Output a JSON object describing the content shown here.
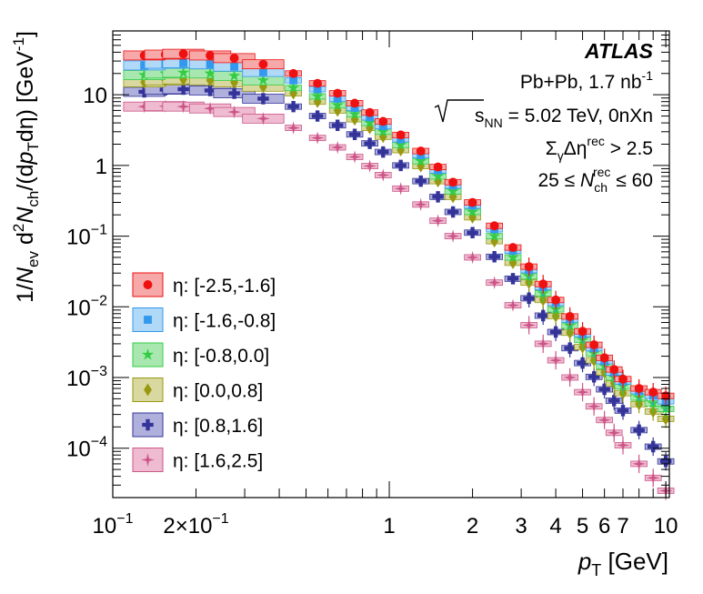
{
  "chart_data": {
    "type": "scatter",
    "title": "",
    "xlabel": {
      "var": "p",
      "sub": "T",
      "unit": "[GeV]"
    },
    "ylabel": {
      "pre": "1/",
      "n1": "N",
      "n1sub": "ev",
      "mid": " d",
      "mid_sup": "2",
      "n2": "N",
      "n2sub": "ch",
      "post1": "/(d",
      "p": "p",
      "psub": "T",
      "post2": "dη) [GeV",
      "post2sup": "-1",
      "post3": "]"
    },
    "x_scale": "log",
    "y_scale": "log",
    "xlim": [
      0.1,
      10.3
    ],
    "ylim": [
      2e-05,
      80
    ],
    "x_ticks": [
      {
        "v": 0.1,
        "base": "10",
        "exp": "−1"
      },
      {
        "v": 0.2,
        "base": "2×10",
        "exp": "−1"
      },
      {
        "v": 1,
        "base": "1"
      },
      {
        "v": 2,
        "base": "2"
      },
      {
        "v": 3,
        "base": "3"
      },
      {
        "v": 4,
        "base": "4"
      },
      {
        "v": 5,
        "base": "5"
      },
      {
        "v": 6,
        "base": "6"
      },
      {
        "v": 7,
        "base": "7"
      },
      {
        "v": 10,
        "base": "10"
      }
    ],
    "y_ticks": [
      {
        "v": 10,
        "base": "10"
      },
      {
        "v": 1,
        "base": "1"
      },
      {
        "v": 0.1,
        "base": "10",
        "exp": "−1"
      },
      {
        "v": 0.01,
        "base": "10",
        "exp": "−2"
      },
      {
        "v": 0.001,
        "base": "10",
        "exp": "−3"
      },
      {
        "v": 0.0001,
        "base": "10",
        "exp": "−4"
      }
    ],
    "annotations": {
      "experiment": "ATLAS",
      "line1": {
        "text": "Pb+Pb, 1.7 nb",
        "sup": "-1"
      },
      "line2": {
        "root_label": "s",
        "root_sub": "NN",
        "text": " = 5.02 TeV, 0nXn"
      },
      "line3": {
        "sigma": "Σ",
        "sigma_sub": "γ",
        "text": "Δη",
        "sup": "rec",
        "tail": " > 2.5"
      },
      "line4": {
        "pre": "25 ≤ ",
        "var": "N",
        "sub": "ch",
        "sup": "rec",
        "tail": " ≤ 60"
      }
    },
    "legend_position": "bottom-left",
    "series": [
      {
        "name": "η: [-2.5,-1.6]",
        "marker": "circle",
        "color": "#ee1111",
        "band_fill": "#f7a8a8",
        "values": [
          {
            "x": 0.13,
            "y": 36
          },
          {
            "x": 0.155,
            "y": 37
          },
          {
            "x": 0.18,
            "y": 38
          },
          {
            "x": 0.225,
            "y": 36
          },
          {
            "x": 0.275,
            "y": 33
          },
          {
            "x": 0.35,
            "y": 27
          },
          {
            "x": 0.45,
            "y": 20
          },
          {
            "x": 0.55,
            "y": 14.5
          },
          {
            "x": 0.65,
            "y": 10.5
          },
          {
            "x": 0.75,
            "y": 7.6
          },
          {
            "x": 0.85,
            "y": 5.6
          },
          {
            "x": 0.95,
            "y": 4.2
          },
          {
            "x": 1.1,
            "y": 2.7
          },
          {
            "x": 1.3,
            "y": 1.6
          },
          {
            "x": 1.5,
            "y": 0.95
          },
          {
            "x": 1.7,
            "y": 0.58
          },
          {
            "x": 2.0,
            "y": 0.3
          },
          {
            "x": 2.4,
            "y": 0.14
          },
          {
            "x": 2.8,
            "y": 0.069
          },
          {
            "x": 3.2,
            "y": 0.037
          },
          {
            "x": 3.6,
            "y": 0.021
          },
          {
            "x": 4.0,
            "y": 0.0125
          },
          {
            "x": 4.5,
            "y": 0.0073
          },
          {
            "x": 5.0,
            "y": 0.0045
          },
          {
            "x": 5.5,
            "y": 0.0029
          },
          {
            "x": 6.0,
            "y": 0.0019
          },
          {
            "x": 6.5,
            "y": 0.0013
          },
          {
            "x": 7.0,
            "y": 0.00095
          },
          {
            "x": 8.0,
            "y": 0.0007
          },
          {
            "x": 9.0,
            "y": 0.00062
          },
          {
            "x": 10.0,
            "y": 0.00055
          }
        ]
      },
      {
        "name": "η: [-1.6,-0.8]",
        "marker": "square",
        "color": "#3399ee",
        "band_fill": "#b0d8f7",
        "values": [
          {
            "x": 0.13,
            "y": 26
          },
          {
            "x": 0.155,
            "y": 27.5
          },
          {
            "x": 0.18,
            "y": 28
          },
          {
            "x": 0.225,
            "y": 27
          },
          {
            "x": 0.275,
            "y": 25
          },
          {
            "x": 0.35,
            "y": 21
          },
          {
            "x": 0.45,
            "y": 16
          },
          {
            "x": 0.55,
            "y": 12
          },
          {
            "x": 0.65,
            "y": 8.8
          },
          {
            "x": 0.75,
            "y": 6.5
          },
          {
            "x": 0.85,
            "y": 4.8
          },
          {
            "x": 0.95,
            "y": 3.6
          },
          {
            "x": 1.1,
            "y": 2.35
          },
          {
            "x": 1.3,
            "y": 1.4
          },
          {
            "x": 1.5,
            "y": 0.85
          },
          {
            "x": 1.7,
            "y": 0.52
          },
          {
            "x": 2.0,
            "y": 0.27
          },
          {
            "x": 2.4,
            "y": 0.125
          },
          {
            "x": 2.8,
            "y": 0.062
          },
          {
            "x": 3.2,
            "y": 0.033
          },
          {
            "x": 3.6,
            "y": 0.019
          },
          {
            "x": 4.0,
            "y": 0.0113
          },
          {
            "x": 4.5,
            "y": 0.0066
          },
          {
            "x": 5.0,
            "y": 0.0041
          },
          {
            "x": 5.5,
            "y": 0.0026
          },
          {
            "x": 6.0,
            "y": 0.0017
          },
          {
            "x": 6.5,
            "y": 0.00118
          },
          {
            "x": 7.0,
            "y": 0.00088
          },
          {
            "x": 8.0,
            "y": 0.00064
          },
          {
            "x": 9.0,
            "y": 0.00055
          },
          {
            "x": 10.0,
            "y": 0.00046
          }
        ]
      },
      {
        "name": "η: [-0.8,0.0]",
        "marker": "star",
        "color": "#33cc44",
        "band_fill": "#a8e8b0",
        "values": [
          {
            "x": 0.13,
            "y": 19
          },
          {
            "x": 0.155,
            "y": 20
          },
          {
            "x": 0.18,
            "y": 20.5
          },
          {
            "x": 0.225,
            "y": 20
          },
          {
            "x": 0.275,
            "y": 18.5
          },
          {
            "x": 0.35,
            "y": 16
          },
          {
            "x": 0.45,
            "y": 12.5
          },
          {
            "x": 0.55,
            "y": 9.5
          },
          {
            "x": 0.65,
            "y": 7.1
          },
          {
            "x": 0.75,
            "y": 5.3
          },
          {
            "x": 0.85,
            "y": 4.0
          },
          {
            "x": 0.95,
            "y": 3.0
          },
          {
            "x": 1.1,
            "y": 1.95
          },
          {
            "x": 1.3,
            "y": 1.15
          },
          {
            "x": 1.5,
            "y": 0.7
          },
          {
            "x": 1.7,
            "y": 0.43
          },
          {
            "x": 2.0,
            "y": 0.22
          },
          {
            "x": 2.4,
            "y": 0.1
          },
          {
            "x": 2.8,
            "y": 0.05
          },
          {
            "x": 3.2,
            "y": 0.027
          },
          {
            "x": 3.6,
            "y": 0.0155
          },
          {
            "x": 4.0,
            "y": 0.0092
          },
          {
            "x": 4.5,
            "y": 0.0054
          },
          {
            "x": 5.0,
            "y": 0.0034
          },
          {
            "x": 5.5,
            "y": 0.0022
          },
          {
            "x": 6.0,
            "y": 0.00145
          },
          {
            "x": 6.5,
            "y": 0.001
          },
          {
            "x": 7.0,
            "y": 0.00075
          },
          {
            "x": 8.0,
            "y": 0.00052
          },
          {
            "x": 9.0,
            "y": 0.00043
          },
          {
            "x": 10.0,
            "y": 0.00036
          }
        ]
      },
      {
        "name": "η: [0.0,0.8]",
        "marker": "diamond",
        "color": "#999911",
        "band_fill": "#d8d8a0",
        "values": [
          {
            "x": 0.13,
            "y": 15
          },
          {
            "x": 0.155,
            "y": 16
          },
          {
            "x": 0.18,
            "y": 16.5
          },
          {
            "x": 0.225,
            "y": 16
          },
          {
            "x": 0.275,
            "y": 15
          },
          {
            "x": 0.35,
            "y": 13
          },
          {
            "x": 0.45,
            "y": 10.5
          },
          {
            "x": 0.55,
            "y": 8.0
          },
          {
            "x": 0.65,
            "y": 6.0
          },
          {
            "x": 0.75,
            "y": 4.5
          },
          {
            "x": 0.85,
            "y": 3.4
          },
          {
            "x": 0.95,
            "y": 2.55
          },
          {
            "x": 1.1,
            "y": 1.65
          },
          {
            "x": 1.3,
            "y": 0.98
          },
          {
            "x": 1.5,
            "y": 0.6
          },
          {
            "x": 1.7,
            "y": 0.36
          },
          {
            "x": 2.0,
            "y": 0.185
          },
          {
            "x": 2.4,
            "y": 0.085
          },
          {
            "x": 2.8,
            "y": 0.042
          },
          {
            "x": 3.2,
            "y": 0.022
          },
          {
            "x": 3.6,
            "y": 0.0125
          },
          {
            "x": 4.0,
            "y": 0.0074
          },
          {
            "x": 4.5,
            "y": 0.0043
          },
          {
            "x": 5.0,
            "y": 0.0027
          },
          {
            "x": 5.5,
            "y": 0.00175
          },
          {
            "x": 6.0,
            "y": 0.00118
          },
          {
            "x": 6.5,
            "y": 0.00082
          },
          {
            "x": 7.0,
            "y": 0.0006
          },
          {
            "x": 8.0,
            "y": 0.00042
          },
          {
            "x": 9.0,
            "y": 0.00033
          },
          {
            "x": 10.0,
            "y": 0.00026
          }
        ]
      },
      {
        "name": "η: [0.8,1.6]",
        "marker": "cross",
        "color": "#333399",
        "band_fill": "#b0b0dd",
        "values": [
          {
            "x": 0.13,
            "y": 11
          },
          {
            "x": 0.155,
            "y": 11.8
          },
          {
            "x": 0.18,
            "y": 12
          },
          {
            "x": 0.225,
            "y": 11.5
          },
          {
            "x": 0.275,
            "y": 10.5
          },
          {
            "x": 0.35,
            "y": 8.8
          },
          {
            "x": 0.45,
            "y": 6.8
          },
          {
            "x": 0.55,
            "y": 5.0
          },
          {
            "x": 0.65,
            "y": 3.7
          },
          {
            "x": 0.75,
            "y": 2.75
          },
          {
            "x": 0.85,
            "y": 2.05
          },
          {
            "x": 0.95,
            "y": 1.55
          },
          {
            "x": 1.1,
            "y": 1.0
          },
          {
            "x": 1.3,
            "y": 0.6
          },
          {
            "x": 1.5,
            "y": 0.36
          },
          {
            "x": 1.7,
            "y": 0.22
          },
          {
            "x": 2.0,
            "y": 0.112
          },
          {
            "x": 2.4,
            "y": 0.051
          },
          {
            "x": 2.8,
            "y": 0.025
          },
          {
            "x": 3.2,
            "y": 0.0132
          },
          {
            "x": 3.6,
            "y": 0.0075
          },
          {
            "x": 4.0,
            "y": 0.0044
          },
          {
            "x": 4.5,
            "y": 0.0026
          },
          {
            "x": 5.0,
            "y": 0.0016
          },
          {
            "x": 5.5,
            "y": 0.00102
          },
          {
            "x": 6.0,
            "y": 0.00068
          },
          {
            "x": 6.5,
            "y": 0.00047
          },
          {
            "x": 7.0,
            "y": 0.00034
          },
          {
            "x": 8.0,
            "y": 0.00018
          },
          {
            "x": 9.0,
            "y": 0.000105
          },
          {
            "x": 10.0,
            "y": 6.5e-05
          }
        ]
      },
      {
        "name": "η: [1.6,2.5]",
        "marker": "star4",
        "color": "#cc5588",
        "band_fill": "#eebbd0",
        "values": [
          {
            "x": 0.13,
            "y": 6.8
          },
          {
            "x": 0.155,
            "y": 6.9
          },
          {
            "x": 0.18,
            "y": 6.8
          },
          {
            "x": 0.225,
            "y": 6.4
          },
          {
            "x": 0.275,
            "y": 5.7
          },
          {
            "x": 0.35,
            "y": 4.6
          },
          {
            "x": 0.45,
            "y": 3.4
          },
          {
            "x": 0.55,
            "y": 2.45
          },
          {
            "x": 0.65,
            "y": 1.8
          },
          {
            "x": 0.75,
            "y": 1.32
          },
          {
            "x": 0.85,
            "y": 0.98
          },
          {
            "x": 0.95,
            "y": 0.73
          },
          {
            "x": 1.1,
            "y": 0.47
          },
          {
            "x": 1.3,
            "y": 0.28
          },
          {
            "x": 1.5,
            "y": 0.165
          },
          {
            "x": 1.7,
            "y": 0.1
          },
          {
            "x": 2.0,
            "y": 0.05
          },
          {
            "x": 2.4,
            "y": 0.022
          },
          {
            "x": 2.8,
            "y": 0.0105
          },
          {
            "x": 3.2,
            "y": 0.0055
          },
          {
            "x": 3.6,
            "y": 0.003
          },
          {
            "x": 4.0,
            "y": 0.00175
          },
          {
            "x": 4.5,
            "y": 0.001
          },
          {
            "x": 5.0,
            "y": 0.00062
          },
          {
            "x": 5.5,
            "y": 0.00039
          },
          {
            "x": 6.0,
            "y": 0.00025
          },
          {
            "x": 6.5,
            "y": 0.000165
          },
          {
            "x": 7.0,
            "y": 0.00011
          },
          {
            "x": 8.0,
            "y": 6e-05
          },
          {
            "x": 9.0,
            "y": 3.8e-05
          },
          {
            "x": 10.0,
            "y": 2.5e-05
          }
        ]
      }
    ]
  }
}
